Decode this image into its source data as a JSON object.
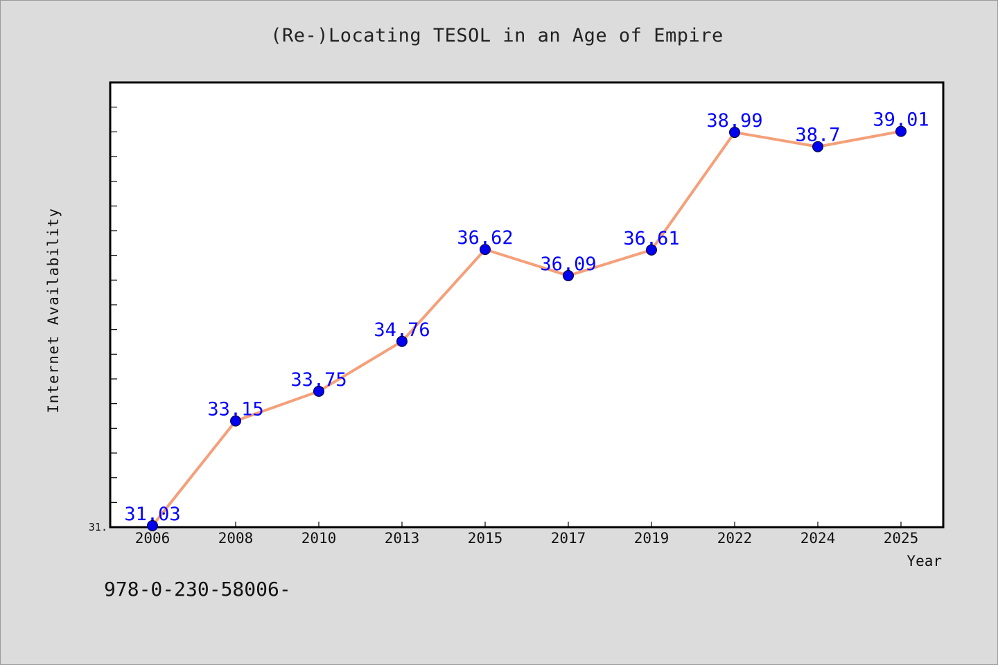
{
  "chart_data": {
    "type": "line",
    "title": "(Re-)Locating TESOL in an Age of Empire",
    "xlabel": "Year",
    "ylabel": "Internet Availability",
    "categories": [
      "2006",
      "2008",
      "2010",
      "2013",
      "2015",
      "2017",
      "2019",
      "2022",
      "2024",
      "2025"
    ],
    "series": [
      {
        "values": [
          31.03,
          33.15,
          33.75,
          34.76,
          36.62,
          36.09,
          36.61,
          38.99,
          38.7,
          39.01
        ]
      }
    ],
    "data_labels": [
      "31.03",
      "33.15",
      "33.75",
      "34.76",
      "36.62",
      "36.09",
      "36.61",
      "38.99",
      "38.7",
      "39.01"
    ],
    "y_tick_labels": [
      "31."
    ],
    "ylim": [
      31.0,
      40.0
    ],
    "grid": false,
    "line_color": "#f4a07a",
    "marker_color": "#0000ee",
    "label_color": "#0000ff"
  },
  "footnote": "978-0-230-58006-"
}
